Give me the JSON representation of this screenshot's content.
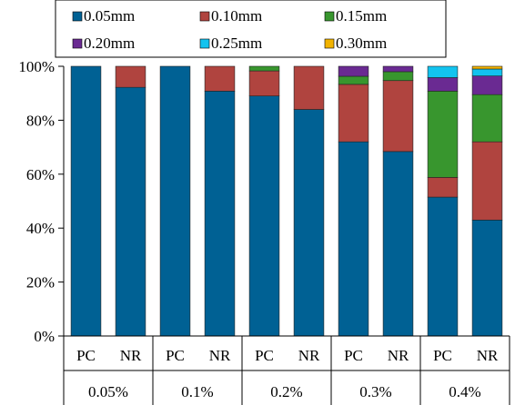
{
  "chart_data": {
    "type": "bar",
    "stacked": true,
    "title": "",
    "xlabel": "",
    "ylabel": "",
    "ylim": [
      0,
      100
    ],
    "y_ticks": [
      "0%",
      "20%",
      "40%",
      "60%",
      "80%",
      "100%"
    ],
    "groups": [
      "0.05%",
      "0.1%",
      "0.2%",
      "0.3%",
      "0.4%"
    ],
    "categories": [
      "PC",
      "NR",
      "PC",
      "NR",
      "PC",
      "NR",
      "PC",
      "NR",
      "PC",
      "NR"
    ],
    "legend_position": "top",
    "series": [
      {
        "name": "0.05mm",
        "color": "#006194",
        "values": [
          100,
          92.2,
          100,
          90.8,
          89,
          84,
          72,
          68.4,
          51.5,
          43
        ]
      },
      {
        "name": "0.10mm",
        "color": "#b0443f",
        "values": [
          0,
          7.8,
          0,
          9.2,
          9.3,
          16,
          21.3,
          26.3,
          7.3,
          29
        ]
      },
      {
        "name": "0.15mm",
        "color": "#38962e",
        "values": [
          0,
          0,
          0,
          0,
          1.7,
          0,
          3,
          3.3,
          32,
          17.5
        ]
      },
      {
        "name": "0.20mm",
        "color": "#6a2a92",
        "values": [
          0,
          0,
          0,
          0,
          0,
          0,
          3.7,
          2,
          5,
          6.9
        ]
      },
      {
        "name": "0.25mm",
        "color": "#12c3ef",
        "values": [
          0,
          0,
          0,
          0,
          0,
          0,
          0,
          0,
          4.2,
          2.6
        ]
      },
      {
        "name": "0.30mm",
        "color": "#f2b300",
        "values": [
          0,
          0,
          0,
          0,
          0,
          0,
          0,
          0,
          0,
          1
        ]
      }
    ]
  }
}
